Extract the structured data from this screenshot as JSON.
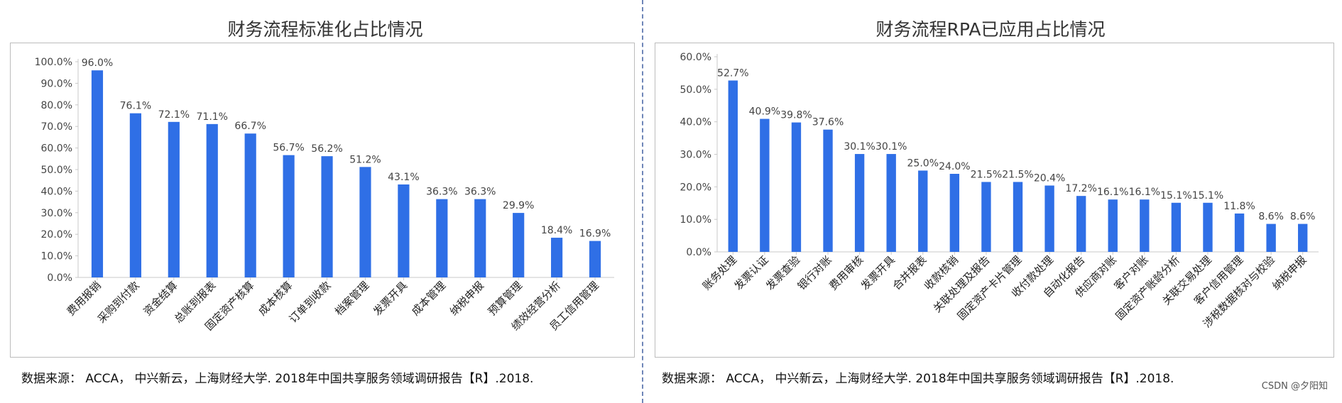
{
  "chart_data": [
    {
      "type": "bar",
      "title": "财务流程标准化占比情况",
      "categories": [
        "费用报销",
        "采购到付款",
        "资金结算",
        "总账到报表",
        "固定资产核算",
        "成本核算",
        "订单到收款",
        "档案管理",
        "发票开具",
        "成本管理",
        "纳税申报",
        "预算管理",
        "绩效经营分析",
        "员工信用管理"
      ],
      "values": [
        96.0,
        76.1,
        72.1,
        71.1,
        66.7,
        56.7,
        56.2,
        51.2,
        43.1,
        36.3,
        36.3,
        29.9,
        18.4,
        16.9
      ],
      "data_labels": [
        "96.0%",
        "76.1%",
        "72.1%",
        "71.1%",
        "66.7%",
        "56.7%",
        "56.2%",
        "51.2%",
        "43.1%",
        "36.3%",
        "36.3%",
        "29.9%",
        "18.4%",
        "16.9%"
      ],
      "yticks": [
        "0.0%",
        "10.0%",
        "20.0%",
        "30.0%",
        "40.0%",
        "50.0%",
        "60.0%",
        "70.0%",
        "80.0%",
        "90.0%",
        "100.0%"
      ],
      "ylim": [
        0,
        100
      ],
      "color": "#2f6fe6",
      "grid": false,
      "source": "数据来源： ACCA， 中兴新云，上海财经大学. 2018年中国共享服务领域调研报告【R】.2018."
    },
    {
      "type": "bar",
      "title": "财务流程RPA已应用占比情况",
      "categories": [
        "账务处理",
        "发票认证",
        "发票查验",
        "银行对账",
        "费用审核",
        "发票开具",
        "合并报表",
        "收款核销",
        "关联处理及报告",
        "固定资产卡片管理",
        "收付款处理",
        "自动化报告",
        "供应商对账",
        "客户对账",
        "固定资产账龄分析",
        "关联交易处理",
        "客户信用管理",
        "涉税数据核对与校验",
        "纳税申报"
      ],
      "values": [
        52.7,
        40.9,
        39.8,
        37.6,
        30.1,
        30.1,
        25.0,
        24.0,
        21.5,
        21.5,
        20.4,
        17.2,
        16.1,
        16.1,
        15.1,
        15.1,
        11.8,
        8.6,
        8.6
      ],
      "data_labels": [
        "52.7%",
        "40.9%",
        "39.8%",
        "37.6%",
        "30.1%",
        "30.1%",
        "25.0%",
        "24.0%",
        "21.5%",
        "21.5%",
        "20.4%",
        "17.2%",
        "16.1%",
        "16.1%",
        "15.1%",
        "15.1%",
        "11.8%",
        "8.6%",
        "8.6%"
      ],
      "yticks": [
        "0.0%",
        "10.0%",
        "20.0%",
        "30.0%",
        "40.0%",
        "50.0%",
        "60.0%"
      ],
      "ylim": [
        0,
        60
      ],
      "color": "#2f6fe6",
      "grid": false,
      "source": "数据来源： ACCA， 中兴新云，上海财经大学. 2018年中国共享服务领域调研报告【R】.2018."
    }
  ],
  "watermark": "CSDN @夕阳知"
}
